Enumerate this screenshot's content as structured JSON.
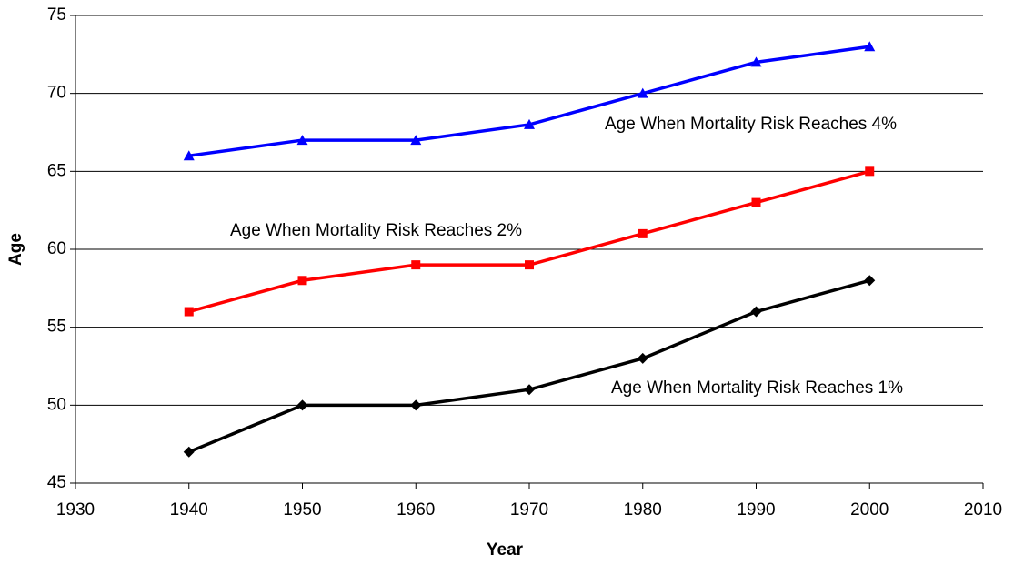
{
  "chart_data": {
    "type": "line",
    "xlabel": "Year",
    "ylabel": "Age",
    "x": [
      1940,
      1950,
      1960,
      1970,
      1980,
      1990,
      2000
    ],
    "series": [
      {
        "name": "Age When Mortality Risk Reaches 4%",
        "color": "#0000ff",
        "marker": "triangle",
        "values": [
          66,
          67,
          67,
          68,
          70,
          72,
          73
        ]
      },
      {
        "name": "Age When Mortality Risk Reaches 2%",
        "color": "#ff0000",
        "marker": "square",
        "values": [
          56,
          58,
          59,
          59,
          61,
          63,
          65
        ]
      },
      {
        "name": "Age When Mortality Risk Reaches 1%",
        "color": "#000000",
        "marker": "diamond",
        "values": [
          47,
          50,
          50,
          51,
          53,
          56,
          58
        ]
      }
    ],
    "xlim": [
      1930,
      2010
    ],
    "xticks": [
      1930,
      1940,
      1950,
      1960,
      1970,
      1980,
      1990,
      2000,
      2010
    ],
    "ylim": [
      45,
      75
    ],
    "yticks": [
      45,
      50,
      55,
      60,
      65,
      70,
      75
    ],
    "grid": true
  }
}
